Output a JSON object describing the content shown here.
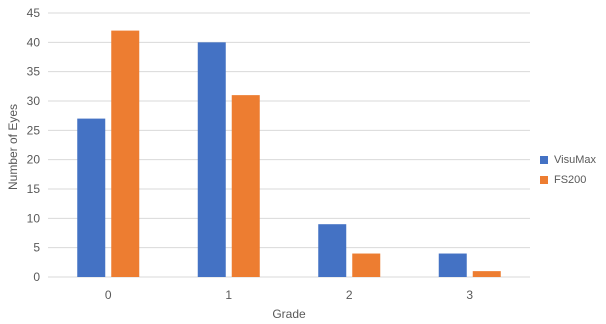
{
  "chart_data": {
    "type": "bar",
    "xlabel": "Grade",
    "ylabel": "Number of Eyes",
    "categories": [
      "0",
      "1",
      "2",
      "3"
    ],
    "ylim": [
      0,
      45
    ],
    "yticks": [
      0,
      5,
      10,
      15,
      20,
      25,
      30,
      35,
      40,
      45
    ],
    "grid": true,
    "legend_position": "right",
    "series": [
      {
        "name": "VisuMax",
        "color": "#4472c4",
        "values": [
          27,
          40,
          9,
          4
        ]
      },
      {
        "name": "FS200",
        "color": "#ed7d31",
        "values": [
          42,
          31,
          4,
          1
        ]
      }
    ]
  }
}
